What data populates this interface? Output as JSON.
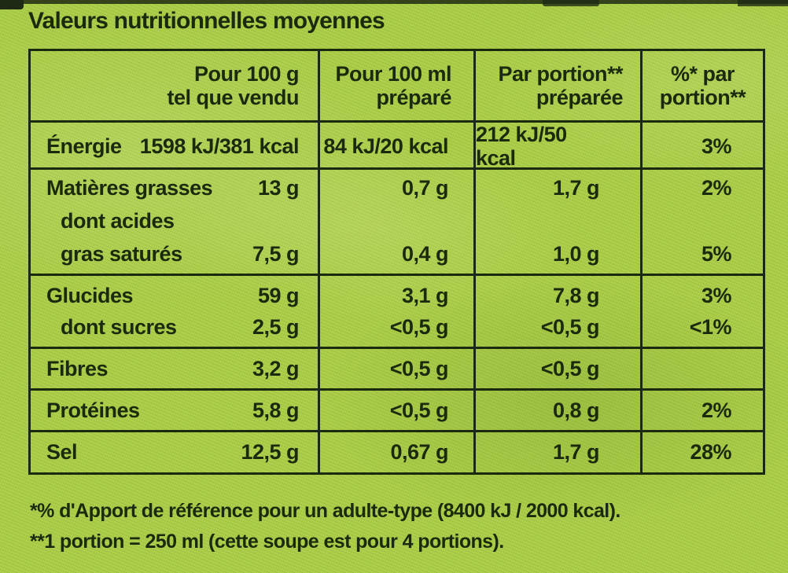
{
  "title": "Valeurs nutritionnelles moyennes",
  "colors": {
    "background": "#a9cd45",
    "ink": "#1b2a0e"
  },
  "table": {
    "headers": [
      {
        "line1": "Pour 100 g",
        "line2": "tel que vendu"
      },
      {
        "line1": "Pour 100 ml",
        "line2": "préparé"
      },
      {
        "line1": "Par portion**",
        "line2": "préparée"
      },
      {
        "line1": "%* par",
        "line2": "portion**"
      }
    ],
    "rows": {
      "energie": {
        "label": "Énergie",
        "per100g": "1598 kJ/381 kcal",
        "per100ml": "84 kJ/20 kcal",
        "portion": "212 kJ/50 kcal",
        "pct": "3%"
      },
      "fat": {
        "label": "Matières grasses",
        "sublabel_line1": "dont acides",
        "sublabel_line2": "gras saturés",
        "per100g": "13 g",
        "per100g_sub": "7,5 g",
        "per100ml": "0,7 g",
        "per100ml_sub": "0,4 g",
        "portion": "1,7 g",
        "portion_sub": "1,0 g",
        "pct": "2%",
        "pct_sub": "5%"
      },
      "carbs": {
        "label": "Glucides",
        "sublabel": "dont sucres",
        "per100g": "59 g",
        "per100g_sub": "2,5 g",
        "per100ml": "3,1 g",
        "per100ml_sub": "<0,5 g",
        "portion": "7,8 g",
        "portion_sub": "<0,5 g",
        "pct": "3%",
        "pct_sub": "<1%"
      },
      "fiber": {
        "label": "Fibres",
        "per100g": "3,2 g",
        "per100ml": "<0,5 g",
        "portion": "<0,5 g",
        "pct": ""
      },
      "protein": {
        "label": "Protéines",
        "per100g": "5,8 g",
        "per100ml": "<0,5 g",
        "portion": "0,8 g",
        "pct": "2%"
      },
      "salt": {
        "label": "Sel",
        "per100g": "12,5 g",
        "per100ml": "0,67 g",
        "portion": "1,7 g",
        "pct": "28%"
      }
    }
  },
  "footnotes": [
    "*% d'Apport de référence pour un adulte-type (8400 kJ / 2000 kcal).",
    "**1 portion = 250 ml (cette soupe est pour 4 portions)."
  ]
}
